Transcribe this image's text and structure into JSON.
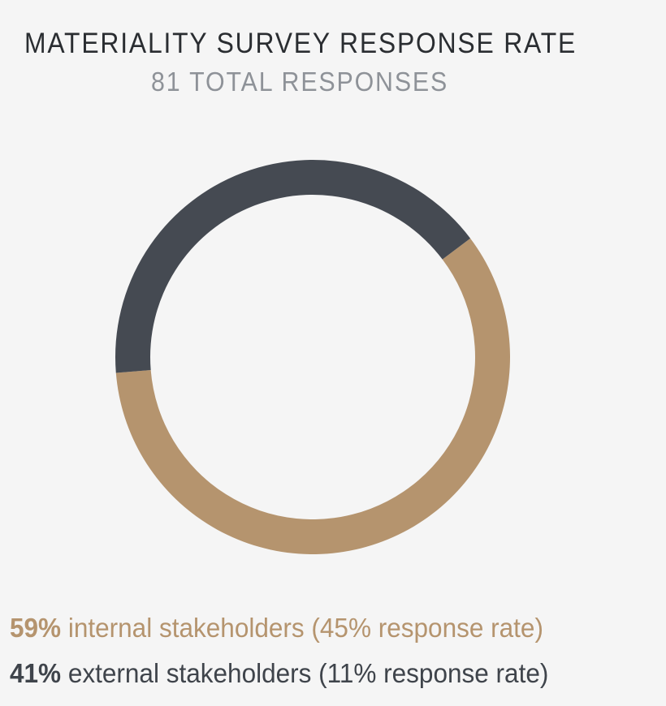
{
  "chart_data": {
    "type": "pie",
    "title": "MATERIALITY SURVEY RESPONSE RATE",
    "subtitle": "81 TOTAL RESPONSES",
    "slices": [
      {
        "percent": 59,
        "color": "#b5946e",
        "label_pct": "59%",
        "label_text": " internal stakeholders (45% response rate)"
      },
      {
        "percent": 41,
        "color": "#454a52",
        "label_pct": "41%",
        "label_text": " external stakeholders (11% response rate)"
      }
    ]
  }
}
